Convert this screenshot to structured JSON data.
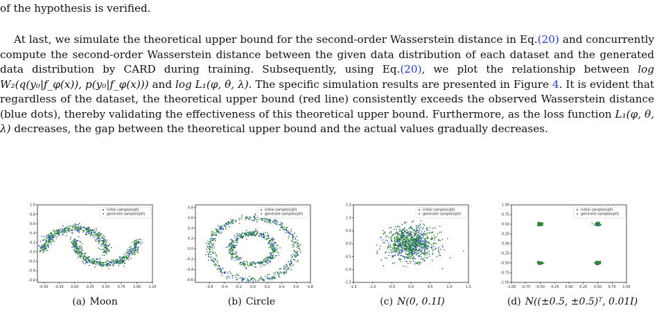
{
  "text": {
    "line0": "of the hypothesis is verified.",
    "p_a": "At last, we simulate the theoretical upper bound for the second-order Wasserstein distance in Eq.",
    "eq_ref": "(20)",
    "p_b": " and concurrently compute the second-order Wasserstein distance between the given data distribution of each dataset and the generated data distribution by CARD during training. Subsequently, using Eq.",
    "p_c": ", we plot the relationship between ",
    "math_w2": "log W₂(q(y₀|f_φ(x)), p(y₀|f_φ(x)))",
    "p_and": " and ",
    "math_l1": "log L₁(φ, θ, λ)",
    "p_d": ". The specific simulation results are presented in Figure ",
    "fig_ref": "4",
    "p_e": ". It is evident that regardless of the dataset, the theoretical upper bound (red line) consistently exceeds the observed Wasserstein distance (blue dots), thereby validating the effectiveness of this theoretical upper bound. Furthermore, as the loss function ",
    "math_l1b": "L₁(φ, θ, λ)",
    "p_f": " decreases, the gap between the theoretical upper bound and the actual values gradually decreases."
  },
  "legend": {
    "initial": "initial samples(q0)",
    "generate": "generate samples(p0)"
  },
  "colors": {
    "initial": "#1f3fbf",
    "generate": "#2a8a2a"
  },
  "captions": [
    {
      "label": "(a)",
      "text": "Moon"
    },
    {
      "label": "(b)",
      "text": "Circle"
    },
    {
      "label": "(c)",
      "text": "N(0, 0.1I)"
    },
    {
      "label": "(d)",
      "text": "N((±0.5, ±0.5)ᵀ, 0.01I)"
    }
  ],
  "chart_data": [
    {
      "type": "scatter",
      "xlim": [
        -0.6,
        1.25
      ],
      "ylim": [
        -0.65,
        1.0
      ],
      "xticks": [
        "-0.50",
        "-0.25",
        "0.00",
        "0.25",
        "0.50",
        "0.75",
        "1.00",
        "1.25"
      ],
      "yticks": [
        "1.0",
        "0.8",
        "0.6",
        "0.4",
        "0.2",
        "0.0",
        "-0.2",
        "-0.4",
        "-0.6"
      ],
      "legend": "top-right",
      "series": [
        {
          "name": "initial samples(q0)",
          "shape": "two interleaving half-moons: upper arc centered (0,0) r=0.5, lower arc centered (0.5,0.25) r=0.5"
        },
        {
          "name": "generate samples(p0)",
          "shape": "two interleaving half-moons: upper arc centered (0,0) r=0.5, lower arc centered (0.5,0.25) r=0.5"
        }
      ]
    },
    {
      "type": "scatter",
      "xlim": [
        -0.8,
        0.8
      ],
      "ylim": [
        -0.65,
        0.85
      ],
      "xticks": [
        "-0.6",
        "-0.4",
        "-0.2",
        "0.0",
        "0.2",
        "0.4",
        "0.6",
        "0.8"
      ],
      "yticks": [
        "0.8",
        "0.6",
        "0.4",
        "0.2",
        "0.0",
        "-0.2",
        "-0.4",
        "-0.6"
      ],
      "legend": "top-right",
      "series": [
        {
          "name": "initial samples(q0)",
          "shape": "two concentric rings, radii 0.6 and 0.3"
        },
        {
          "name": "generate samples(p0)",
          "shape": "two concentric rings, radii 0.6 and 0.3"
        }
      ]
    },
    {
      "type": "scatter",
      "xlim": [
        -1.5,
        1.5
      ],
      "ylim": [
        -1.5,
        1.5
      ],
      "xticks": [
        "-1.5",
        "-1.0",
        "-0.5",
        "0.0",
        "0.5",
        "1.0",
        "1.5"
      ],
      "yticks": [
        "1.5",
        "1.0",
        "0.5",
        "0.0",
        "-0.5",
        "-1.0",
        "-1.5"
      ],
      "legend": "top-right",
      "series": [
        {
          "name": "initial samples(q0)",
          "shape": "isotropic Gaussian cloud centered at origin, std about 0.32"
        },
        {
          "name": "generate samples(p0)",
          "shape": "isotropic Gaussian cloud centered at origin, std about 0.32"
        }
      ]
    },
    {
      "type": "scatter",
      "xlim": [
        -1.0,
        1.0
      ],
      "ylim": [
        -1.0,
        1.0
      ],
      "xticks": [
        "-1.00",
        "-0.75",
        "-0.50",
        "-0.25",
        "0.00",
        "0.25",
        "0.50",
        "0.75",
        "1.00"
      ],
      "yticks": [
        "1.00",
        "0.75",
        "0.50",
        "0.25",
        "0.00",
        "-0.25",
        "-0.50",
        "-0.75",
        "-1.00"
      ],
      "legend": "top-right",
      "series": [
        {
          "name": "initial samples(q0)",
          "clusters": [
            [
              -0.5,
              0.5
            ],
            [
              0.5,
              0.5
            ],
            [
              -0.5,
              -0.5
            ],
            [
              0.5,
              -0.5
            ]
          ]
        },
        {
          "name": "generate samples(p0)",
          "clusters": [
            [
              -0.5,
              0.5
            ],
            [
              0.5,
              0.5
            ],
            [
              -0.5,
              -0.5
            ],
            [
              0.5,
              -0.5
            ]
          ]
        }
      ]
    }
  ]
}
